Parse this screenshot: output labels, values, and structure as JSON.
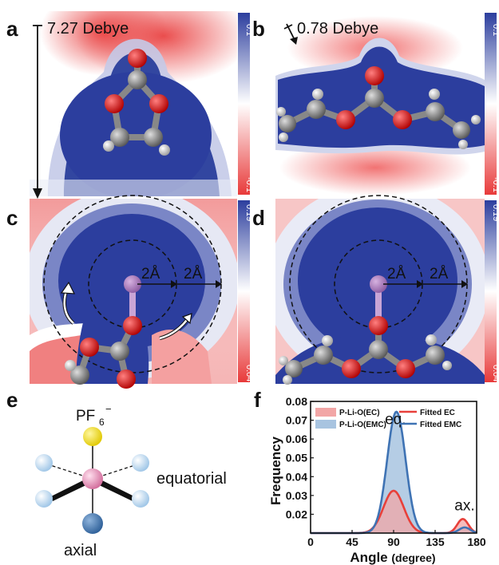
{
  "panels": {
    "a": {
      "label": "a",
      "dipole": "7.27 Debye",
      "cbar_top": "0.1",
      "cbar_bottom": "-0.1"
    },
    "b": {
      "label": "b",
      "dipole": "0.78 Debye",
      "cbar_top": "0.1",
      "cbar_bottom": "-0.1"
    },
    "c": {
      "label": "c",
      "r1": "2Å",
      "r2": "2Å",
      "cbar_top": "0.19",
      "cbar_bottom": "0.04"
    },
    "d": {
      "label": "d",
      "r1": "2Å",
      "r2": "2Å",
      "cbar_top": "0.19",
      "cbar_bottom": "0.04"
    },
    "e": {
      "label": "e",
      "pf6": "PF",
      "pf6_sub": "6",
      "pf6_sup": "−",
      "equatorial": "equatorial",
      "axial": "axial"
    }
  },
  "colors": {
    "positive": "#2c3e9e",
    "negative": "#e83a3a",
    "ec_fill": "#f2a6a6",
    "emc_fill": "#a8c4e0",
    "ec_line": "#e8403a",
    "emc_line": "#3f73b4"
  },
  "chart_data": {
    "label": "f",
    "type": "area",
    "xlabel": "Angle",
    "xlabel_unit": "(degree)",
    "ylabel": "Frequency",
    "xlim": [
      0,
      180
    ],
    "ylim": [
      0,
      0.08
    ],
    "x_ticks": [
      0,
      45,
      90,
      135,
      180
    ],
    "y_ticks": [
      0.02,
      0.03,
      0.04,
      0.05,
      0.06,
      0.07,
      0.08
    ],
    "y_tick_labels": [
      "0.02",
      "0.03",
      "0.04",
      "0.05",
      "0.06",
      "0.07",
      "0.08"
    ],
    "annotations": [
      {
        "text": "eq.",
        "x": 92,
        "y": 0.068
      },
      {
        "text": "ax.",
        "x": 167,
        "y": 0.022
      }
    ],
    "series": [
      {
        "name": "P-Li-O(EC)",
        "kind": "hist",
        "peaks": [
          [
            90,
            0.0225,
            11
          ],
          [
            165,
            0.0075,
            6
          ]
        ]
      },
      {
        "name": "P-Li-O(EMC)",
        "kind": "hist",
        "peaks": [
          [
            93,
            0.0645,
            10
          ],
          [
            167,
            0.003,
            6
          ]
        ]
      },
      {
        "name": "Fitted EC",
        "kind": "line",
        "peaks": [
          [
            90,
            0.0225,
            11
          ],
          [
            165,
            0.0075,
            6
          ]
        ]
      },
      {
        "name": "Fitted EMC",
        "kind": "line",
        "peaks": [
          [
            93,
            0.0645,
            10
          ],
          [
            167,
            0.003,
            6
          ]
        ]
      }
    ]
  }
}
